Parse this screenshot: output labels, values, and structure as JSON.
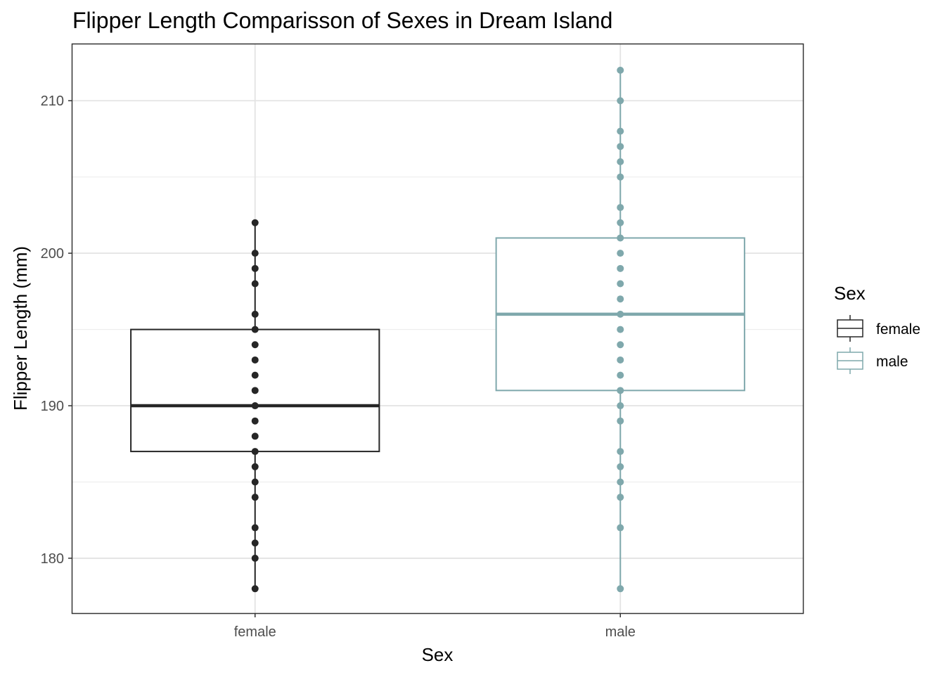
{
  "chart_data": {
    "type": "box",
    "title": "Flipper Length Comparisson of Sexes in Dream Island",
    "xlabel": "Sex",
    "ylabel": "Flipper Length (mm)",
    "categories": [
      "female",
      "male"
    ],
    "ylim": [
      176.4,
      213.7
    ],
    "yticks": [
      180,
      190,
      200,
      210
    ],
    "grid": true,
    "legend": {
      "title": "Sex",
      "position": "right",
      "entries": [
        "female",
        "male"
      ]
    },
    "series": [
      {
        "name": "female",
        "color": "#262626",
        "box": {
          "lower_whisker": 178,
          "q1": 187,
          "median": 190,
          "q3": 195,
          "upper_whisker": 202
        },
        "points": [
          178,
          180,
          181,
          182,
          184,
          185,
          186,
          187,
          188,
          189,
          190,
          191,
          192,
          193,
          194,
          195,
          196,
          198,
          199,
          200,
          202
        ]
      },
      {
        "name": "male",
        "color": "#7fa8ac",
        "box": {
          "lower_whisker": 178,
          "q1": 191,
          "median": 196,
          "q3": 201,
          "upper_whisker": 212
        },
        "points": [
          178,
          182,
          184,
          185,
          186,
          187,
          189,
          190,
          191,
          192,
          193,
          194,
          195,
          196,
          197,
          198,
          199,
          200,
          201,
          202,
          203,
          205,
          206,
          207,
          208,
          210,
          212
        ]
      }
    ]
  }
}
